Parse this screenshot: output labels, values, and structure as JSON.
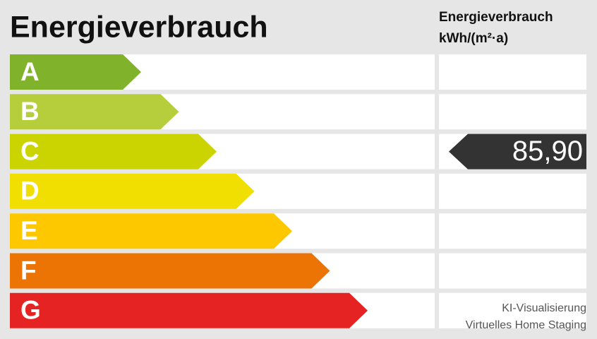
{
  "header": {
    "title": "Energieverbrauch",
    "unit_title": "Energieverbrauch",
    "unit": "kWh/(m²·a)"
  },
  "rows": [
    {
      "label": "A",
      "color": "#80b22c"
    },
    {
      "label": "B",
      "color": "#b6cd3c"
    },
    {
      "label": "C",
      "color": "#cbd400",
      "value": "85,90"
    },
    {
      "label": "D",
      "color": "#f0df00"
    },
    {
      "label": "E",
      "color": "#fec800"
    },
    {
      "label": "F",
      "color": "#ec7405"
    },
    {
      "label": "G",
      "color": "#e42322"
    }
  ],
  "watermark": {
    "line1": "KI-Visualisierung",
    "line2": "Virtuelles Home Staging"
  }
}
